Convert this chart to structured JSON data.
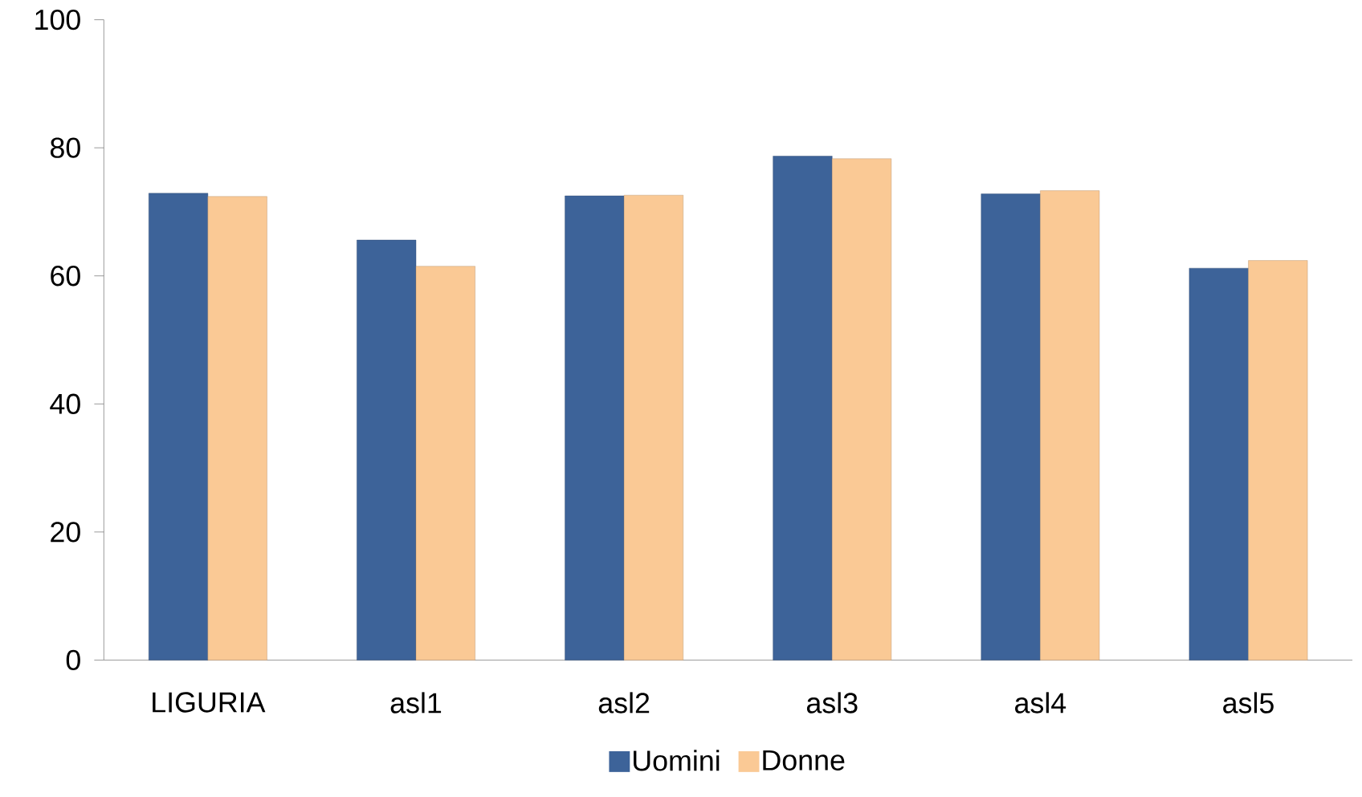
{
  "chart_data": {
    "type": "bar",
    "categories": [
      "LIGURIA",
      "asl1",
      "asl2",
      "asl3",
      "asl4",
      "asl5"
    ],
    "series": [
      {
        "name": "Uomini",
        "color": "#3d6399",
        "values": [
          72.9,
          65.6,
          72.5,
          78.7,
          72.8,
          61.2
        ]
      },
      {
        "name": "Donne",
        "color": "#fac995",
        "values": [
          72.4,
          61.5,
          72.6,
          78.3,
          73.3,
          62.4
        ]
      }
    ],
    "ylim": [
      0,
      100
    ],
    "yticks": [
      0,
      20,
      40,
      60,
      80,
      100
    ],
    "grid": false,
    "legend": "bottom"
  }
}
